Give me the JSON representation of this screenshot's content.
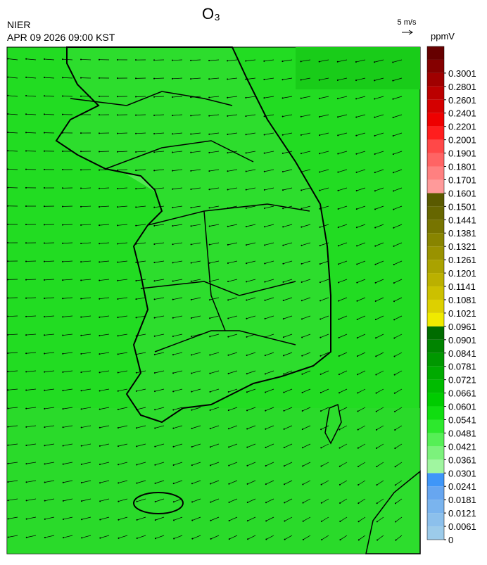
{
  "header": {
    "title": "O₃",
    "agency": "NIER",
    "datetime": "APR 09 2026 09:00 KST",
    "wind_scale": "5 m/s"
  },
  "colorbar": {
    "unit": "ppmV",
    "ticks": [
      0,
      0.0061,
      0.0121,
      0.0181,
      0.0241,
      0.0301,
      0.0361,
      0.0421,
      0.0481,
      0.0541,
      0.0601,
      0.0661,
      0.0721,
      0.0781,
      0.0841,
      0.0901,
      0.0961,
      0.1021,
      0.1081,
      0.1141,
      0.1201,
      0.1261,
      0.1321,
      0.1381,
      0.1441,
      0.1501,
      0.1601,
      0.1701,
      0.1801,
      0.1901,
      0.2001,
      0.2201,
      0.2401,
      0.2601,
      0.2801,
      0.3001
    ],
    "colors": [
      "#9ccbea",
      "#8cc0ec",
      "#7ab4ee",
      "#67a6f0",
      "#3f96f8",
      "#a0f6a0",
      "#7cf27c",
      "#56ef56",
      "#2de82d",
      "#10dd10",
      "#00cc00",
      "#00bb00",
      "#00aa00",
      "#009800",
      "#008400",
      "#006c00",
      "#f0ea00",
      "#ddd000",
      "#ccc000",
      "#bbb000",
      "#aaa200",
      "#999200",
      "#888400",
      "#777400",
      "#666600",
      "#5a5a00",
      "#ff9a9a",
      "#ff8080",
      "#ff6464",
      "#ff4848",
      "#ff1e1e",
      "#ee0000",
      "#d40000",
      "#bb0000",
      "#a00000",
      "#850000",
      "#660000"
    ]
  }
}
